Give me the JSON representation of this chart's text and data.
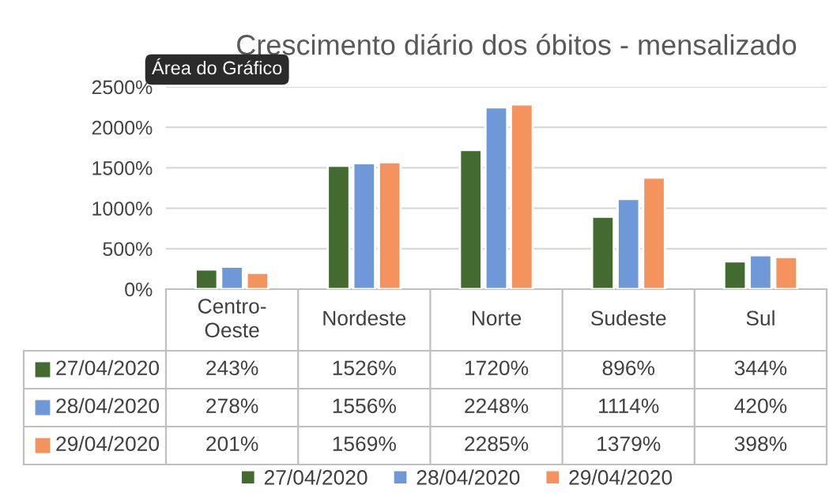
{
  "chart_data": {
    "type": "bar",
    "title": "Crescimento diário dos óbitos - mensalizado",
    "categories": [
      "Centro-Oeste",
      "Nordeste",
      "Norte",
      "Sudeste",
      "Sul"
    ],
    "series": [
      {
        "name": "27/04/2020",
        "color": "#436b30",
        "values": [
          243,
          1526,
          1720,
          896,
          344
        ],
        "value_labels": [
          "243%",
          "1526%",
          "1720%",
          "896%",
          "344%"
        ]
      },
      {
        "name": "28/04/2020",
        "color": "#6f98d8",
        "values": [
          278,
          1556,
          2248,
          1114,
          420
        ],
        "value_labels": [
          "278%",
          "1556%",
          "2248%",
          "1114%",
          "420%"
        ]
      },
      {
        "name": "29/04/2020",
        "color": "#f4935e",
        "values": [
          201,
          1569,
          2285,
          1379,
          398
        ],
        "value_labels": [
          "201%",
          "1569%",
          "2285%",
          "1379%",
          "398%"
        ]
      }
    ],
    "ylim": [
      0,
      2500
    ],
    "yticks": [
      {
        "value": 0,
        "label": "0%"
      },
      {
        "value": 500,
        "label": "500%"
      },
      {
        "value": 1000,
        "label": "1000%"
      },
      {
        "value": 1500,
        "label": "1500%"
      },
      {
        "value": 2000,
        "label": "2000%"
      },
      {
        "value": 2500,
        "label": "2500%"
      }
    ],
    "grid": "y",
    "legend": "bottom",
    "annotations": [
      "Área do Gráfico"
    ]
  }
}
